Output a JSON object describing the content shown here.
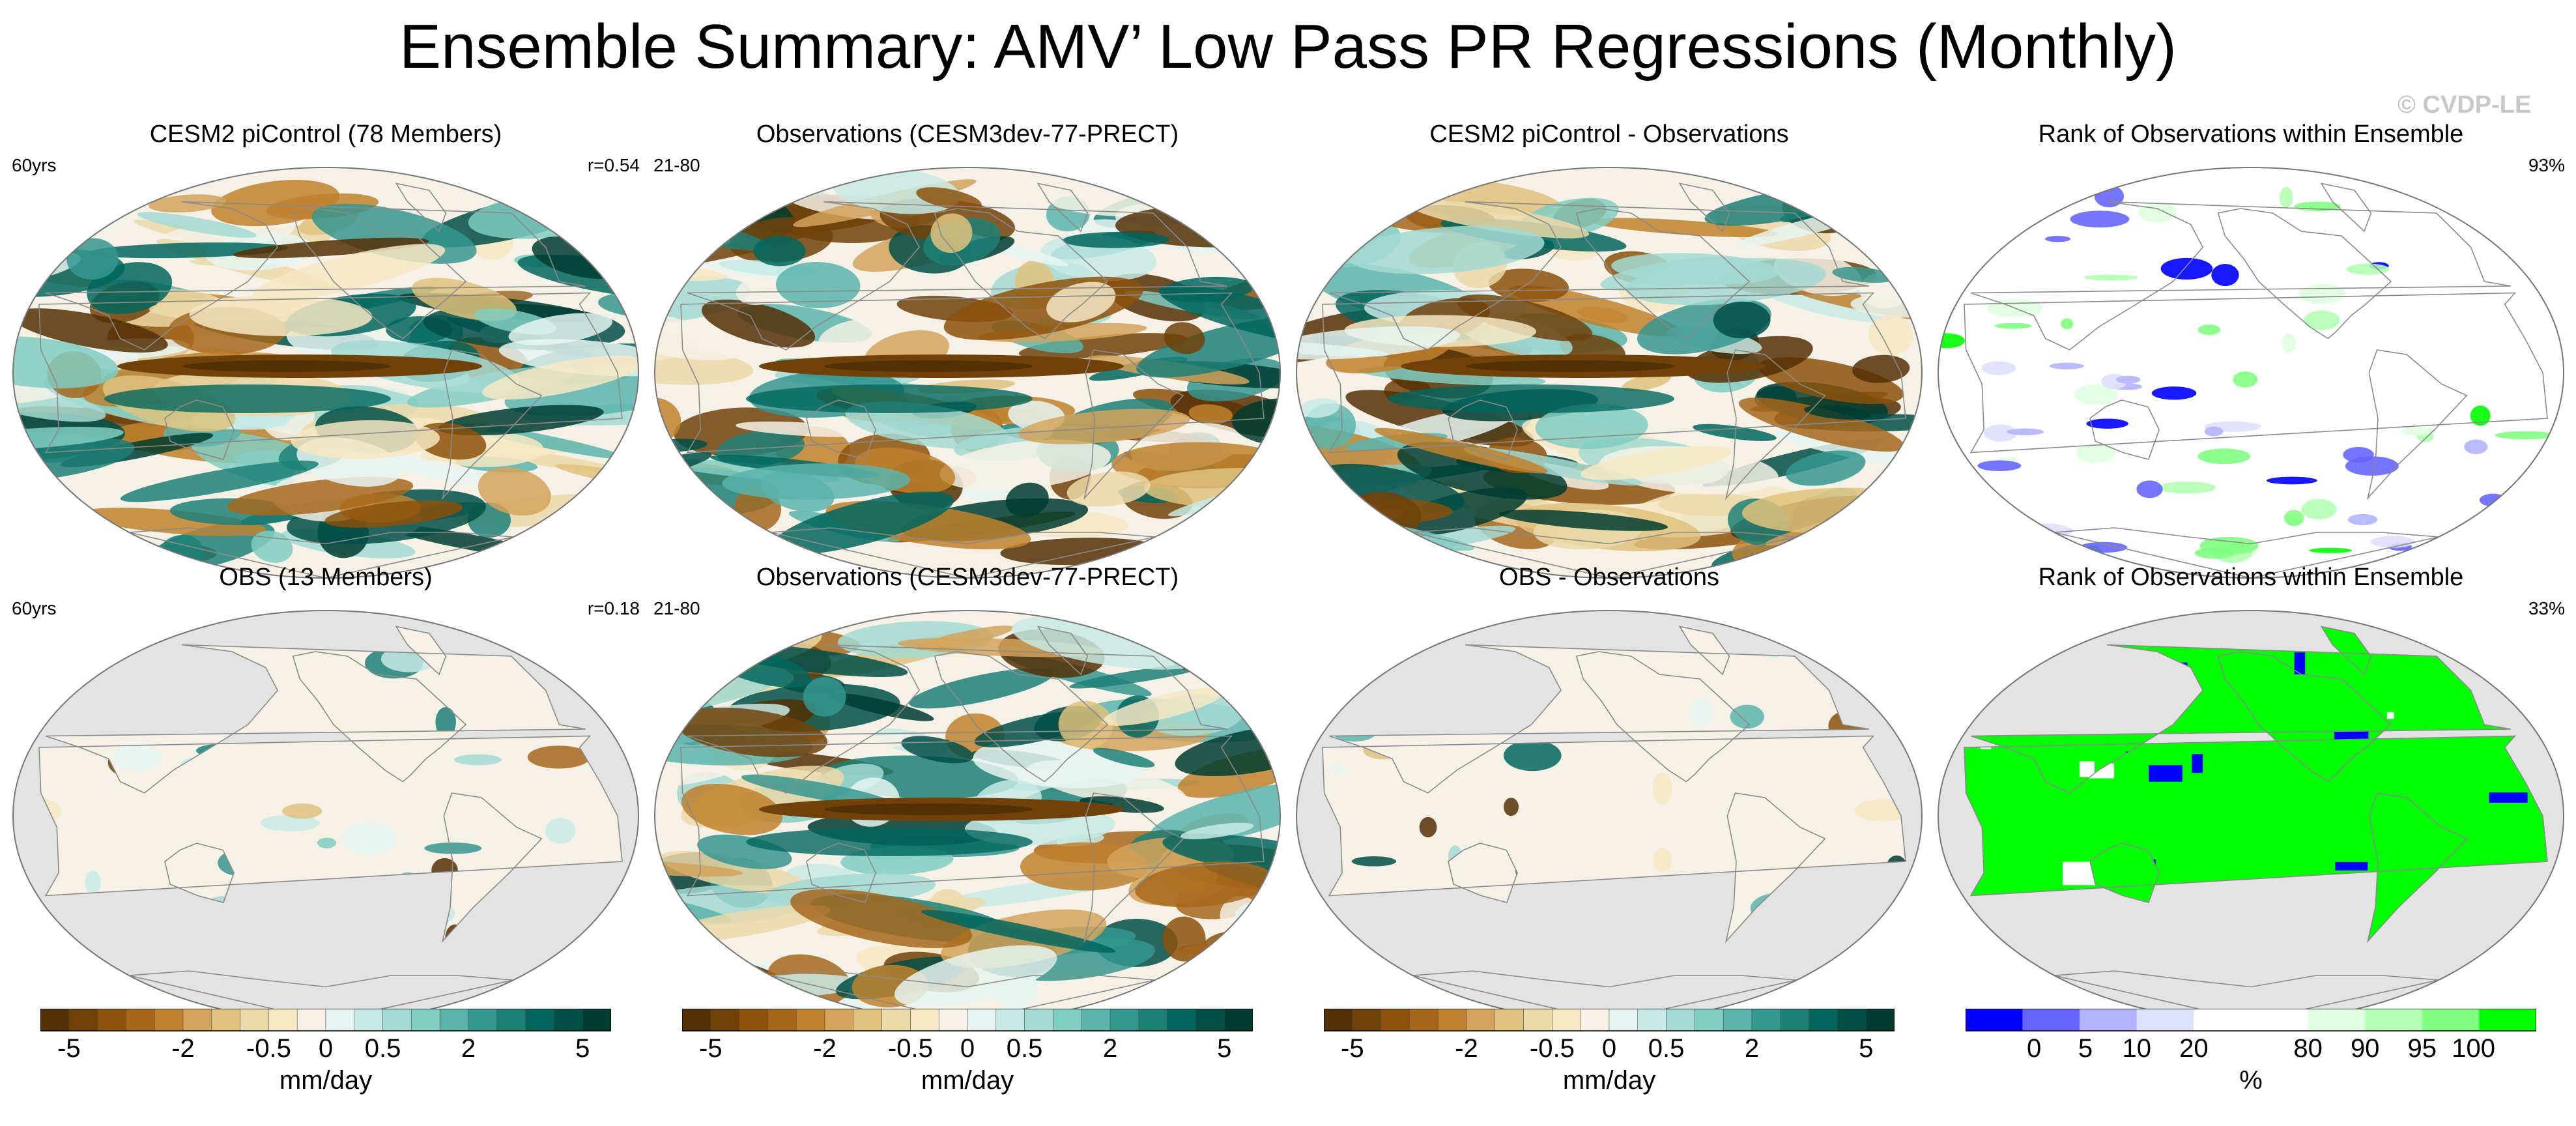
{
  "title": "Ensemble Summary: AMV’ Low Pass PR Regressions (Monthly)",
  "watermark": "© CVDP-LE",
  "colors": {
    "brown_teal": [
      "#543005",
      "#70420a",
      "#8c510a",
      "#a6671c",
      "#bf812d",
      "#d4a35c",
      "#dfc27d",
      "#ecd9a8",
      "#f6e8c3",
      "#f5f1e6",
      "#e6f4f1",
      "#c7eae5",
      "#a3dbd2",
      "#80cdc1",
      "#5ab4ac",
      "#35978f",
      "#1d8077",
      "#01665e",
      "#014f46",
      "#003c30"
    ],
    "rank": [
      "#0000ff",
      "#6666ff",
      "#b3b3ff",
      "#e0e0ff",
      "#ffffff",
      "#ffffff",
      "#e0ffe0",
      "#b3ffb3",
      "#80ff80",
      "#00ff00"
    ],
    "missing": "#e3e3e3",
    "coast": "#8a8a8a"
  },
  "panels": [
    {
      "title": "CESM2 piControl (78 Members)",
      "left": "60yrs",
      "right": "r=0.54",
      "kind": "field",
      "seed": 11,
      "masked": false
    },
    {
      "title": "Observations (CESM3dev-77-PRECT)",
      "left": "21-80",
      "right": "",
      "kind": "field",
      "seed": 23,
      "masked": false
    },
    {
      "title": "CESM2 piControl - Observations",
      "left": "",
      "right": "",
      "kind": "field",
      "seed": 37,
      "masked": false
    },
    {
      "title": "Rank of Observations within Ensemble",
      "left": "",
      "right": "93%",
      "kind": "rank",
      "seed": 41,
      "masked": false
    },
    {
      "title": "OBS (13 Members)",
      "left": "60yrs",
      "right": "r=0.18",
      "kind": "field",
      "seed": 53,
      "masked": true
    },
    {
      "title": "Observations (CESM3dev-77-PRECT)",
      "left": "21-80",
      "right": "",
      "kind": "field",
      "seed": 67,
      "masked": false
    },
    {
      "title": "OBS - Observations",
      "left": "",
      "right": "",
      "kind": "field",
      "seed": 71,
      "masked": true
    },
    {
      "title": "Rank of Observations within Ensemble",
      "left": "",
      "right": "33%",
      "kind": "rank",
      "seed": 83,
      "masked": true
    }
  ],
  "colorbars": [
    {
      "label": "mm/day",
      "ticks": [
        "-5",
        "-2",
        "-0.5",
        "0",
        "0.5",
        "2",
        "5"
      ],
      "kind": "field"
    },
    {
      "label": "mm/day",
      "ticks": [
        "-5",
        "-2",
        "-0.5",
        "0",
        "0.5",
        "2",
        "5"
      ],
      "kind": "field"
    },
    {
      "label": "mm/day",
      "ticks": [
        "-5",
        "-2",
        "-0.5",
        "0",
        "0.5",
        "2",
        "5"
      ],
      "kind": "field"
    },
    {
      "label": "%",
      "ticks": [
        "0",
        "5",
        "10",
        "20",
        "80",
        "90",
        "95",
        "100"
      ],
      "kind": "rank"
    }
  ],
  "chart_data": {
    "type": "heatmap",
    "title": "Ensemble Summary: AMV’ Low Pass PR Regressions (Monthly)",
    "panels": [
      {
        "title": "CESM2 piControl (78 Members)",
        "period": "60yrs",
        "pattern_correlation": 0.54,
        "units": "mm/day"
      },
      {
        "title": "Observations (CESM3dev-77-PRECT)",
        "period": "21-80",
        "units": "mm/day"
      },
      {
        "title": "CESM2 piControl - Observations",
        "units": "mm/day"
      },
      {
        "title": "Rank of Observations within Ensemble",
        "percent": 93,
        "units": "%"
      },
      {
        "title": "OBS (13 Members)",
        "period": "60yrs",
        "pattern_correlation": 0.18,
        "units": "mm/day"
      },
      {
        "title": "Observations (CESM3dev-77-PRECT)",
        "period": "21-80",
        "units": "mm/day"
      },
      {
        "title": "OBS - Observations",
        "units": "mm/day"
      },
      {
        "title": "Rank of Observations within Ensemble",
        "percent": 33,
        "units": "%"
      }
    ],
    "colorbar_mm_day_ticks": [
      -5,
      -2,
      -0.5,
      0,
      0.5,
      2,
      5
    ],
    "colorbar_rank_ticks": [
      0,
      5,
      10,
      20,
      80,
      90,
      95,
      100
    ]
  }
}
